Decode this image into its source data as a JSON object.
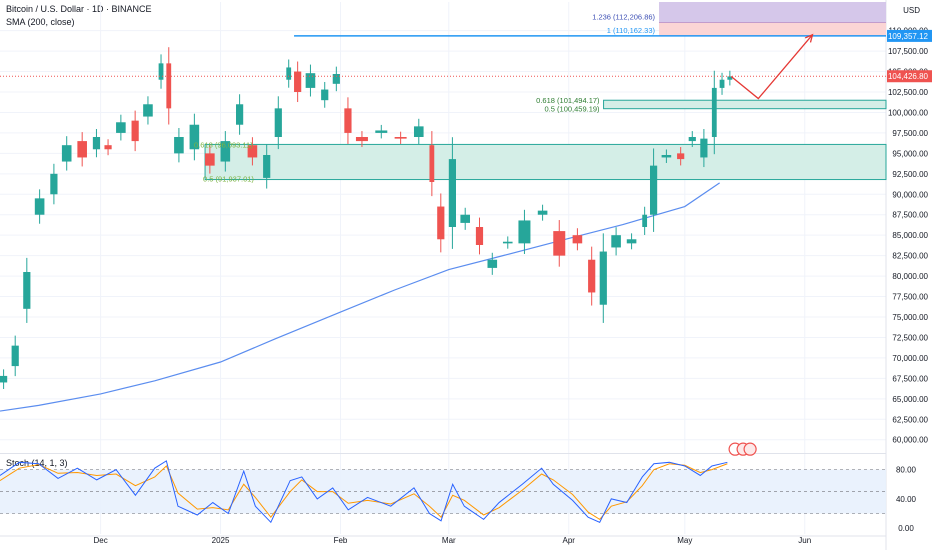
{
  "header": {
    "symbol_title": "Bitcoin / U.S. Dollar · 1D · BINANCE",
    "sma_label": "SMA (200, close)",
    "stoch_label": "Stoch (14, 1, 3)",
    "currency": "USD"
  },
  "colors": {
    "up": "#26a69a",
    "down": "#ef5350",
    "sma": "#5b8def",
    "stoch_k": "#2962ff",
    "stoch_d": "#ff9800",
    "zone_fill": "#d4eee7",
    "zone_border": "#26a69a",
    "breakout_line": "#2196f3",
    "projection_arrow": "#e53935",
    "fib_236_fill": "#d5c7ea",
    "fib_1_fill": "#fbd5d5",
    "current_price_bg": "#ef5350",
    "breakout_price_bg": "#2196f3"
  },
  "chart_data": [
    {
      "type": "candlestick",
      "title": "Bitcoin / U.S. Dollar · 1D · BINANCE",
      "y_axis_ticks": [
        60000,
        62500,
        65000,
        67500,
        70000,
        72500,
        75000,
        77500,
        80000,
        82500,
        85000,
        87500,
        90000,
        92500,
        95000,
        97500,
        100000,
        102500,
        105000,
        107500,
        110000
      ],
      "y_tick_labels": [
        "60,000.00",
        "62,500.00",
        "65,000.00",
        "67,500.00",
        "70,000.00",
        "72,500.00",
        "75,000.00",
        "77,500.00",
        "80,000.00",
        "82,500.00",
        "85,000.00",
        "87,500.00",
        "90,000.00",
        "92,500.00",
        "95,000.00",
        "97,500.00",
        "100,000.00",
        "102,500.00",
        "105,000.00",
        "107,500.00",
        "110,000.00"
      ],
      "ylim": [
        58500,
        113500
      ],
      "x_tick_labels": [
        "Dec",
        "2025",
        "Feb",
        "Mar",
        "Apr",
        "May",
        "Jun"
      ],
      "x_tick_dates": [
        "2024-12-01",
        "2025-01-01",
        "2025-02-01",
        "2025-03-01",
        "2025-04-01",
        "2025-05-01",
        "2025-06-01"
      ],
      "xlim": [
        "2024-11-05",
        "2025-06-22"
      ],
      "series": [
        {
          "name": "SMA (200, close)",
          "points": [
            [
              "2024-11-05",
              63500
            ],
            [
              "2024-11-15",
              64200
            ],
            [
              "2024-12-01",
              65600
            ],
            [
              "2024-12-15",
              67200
            ],
            [
              "2025-01-01",
              69500
            ],
            [
              "2025-01-15",
              72300
            ],
            [
              "2025-02-01",
              75600
            ],
            [
              "2025-02-15",
              78300
            ],
            [
              "2025-03-01",
              80800
            ],
            [
              "2025-03-15",
              82500
            ],
            [
              "2025-04-01",
              84600
            ],
            [
              "2025-04-15",
              86300
            ],
            [
              "2025-05-01",
              88500
            ],
            [
              "2025-05-10",
              91400
            ]
          ]
        }
      ],
      "candles_sampled": [
        [
          "2024-11-05",
          67000,
          67800
        ],
        [
          "2024-11-08",
          69000,
          71500
        ],
        [
          "2024-11-11",
          76000,
          80500
        ],
        [
          "2024-11-14",
          87500,
          89500
        ],
        [
          "2024-11-18",
          90000,
          92500
        ],
        [
          "2024-11-21",
          94000,
          96000
        ],
        [
          "2024-11-25",
          96500,
          94500
        ],
        [
          "2024-11-29",
          95500,
          97000
        ],
        [
          "2024-12-02",
          96000,
          95500
        ],
        [
          "2024-12-05",
          97500,
          98800
        ],
        [
          "2024-12-09",
          99000,
          96500
        ],
        [
          "2024-12-12",
          99500,
          101000
        ],
        [
          "2024-12-16",
          104000,
          106000
        ],
        [
          "2024-12-18",
          106000,
          100500
        ],
        [
          "2024-12-20",
          95000,
          97000
        ],
        [
          "2024-12-24",
          95500,
          98500
        ],
        [
          "2024-12-28",
          95000,
          93500
        ],
        [
          "2025-01-01",
          94000,
          96500
        ],
        [
          "2025-01-05",
          98500,
          101000
        ],
        [
          "2025-01-08",
          96000,
          94500
        ],
        [
          "2025-01-12",
          92000,
          94800
        ],
        [
          "2025-01-15",
          97000,
          100500
        ],
        [
          "2025-01-18",
          104000,
          105500
        ],
        [
          "2025-01-20",
          105000,
          102500
        ],
        [
          "2025-01-23",
          103000,
          104800
        ],
        [
          "2025-01-27",
          101500,
          102800
        ],
        [
          "2025-01-30",
          103500,
          104700
        ],
        [
          "2025-02-02",
          100500,
          97500
        ],
        [
          "2025-02-05",
          97000,
          96500
        ],
        [
          "2025-02-10",
          97500,
          97800
        ],
        [
          "2025-02-15",
          97000,
          96800
        ],
        [
          "2025-02-20",
          97000,
          98300
        ],
        [
          "2025-02-24",
          96000,
          91500
        ],
        [
          "2025-02-26",
          88500,
          84500
        ],
        [
          "2025-03-01",
          86000,
          94300
        ],
        [
          "2025-03-04",
          86500,
          87500
        ],
        [
          "2025-03-08",
          86000,
          83800
        ],
        [
          "2025-03-11",
          81000,
          82000
        ],
        [
          "2025-03-15",
          84000,
          84200
        ],
        [
          "2025-03-19",
          84000,
          86800
        ],
        [
          "2025-03-24",
          87500,
          88000
        ],
        [
          "2025-03-28",
          85500,
          82500
        ],
        [
          "2025-04-02",
          85000,
          84000
        ],
        [
          "2025-04-06",
          82000,
          78000
        ],
        [
          "2025-04-09",
          76500,
          83000
        ],
        [
          "2025-04-12",
          83500,
          85000
        ],
        [
          "2025-04-16",
          84000,
          84500
        ],
        [
          "2025-04-20",
          86000,
          87500
        ],
        [
          "2025-04-22",
          87500,
          93500
        ],
        [
          "2025-04-25",
          94500,
          94800
        ],
        [
          "2025-04-29",
          95000,
          94300
        ],
        [
          "2025-05-02",
          96500,
          97000
        ],
        [
          "2025-05-05",
          94500,
          96800
        ],
        [
          "2025-05-08",
          97000,
          103000
        ],
        [
          "2025-05-10",
          103000,
          104000
        ],
        [
          "2025-05-12",
          104000,
          104400
        ]
      ]
    },
    {
      "type": "line",
      "title": "Stoch (14, 1, 3)",
      "y_axis_ticks": [
        0,
        40,
        80
      ],
      "y_tick_labels": [
        "0.00",
        "40.00",
        "80.00"
      ],
      "reference_levels": [
        20,
        50,
        80
      ],
      "ylim": [
        -8,
        100
      ],
      "series": [
        {
          "name": "%K",
          "points": [
            [
              "2024-11-05",
              72
            ],
            [
              "2024-11-10",
              90
            ],
            [
              "2024-11-15",
              88
            ],
            [
              "2024-11-20",
              68
            ],
            [
              "2024-11-25",
              82
            ],
            [
              "2024-11-30",
              66
            ],
            [
              "2024-12-05",
              80
            ],
            [
              "2024-12-10",
              45
            ],
            [
              "2024-12-15",
              82
            ],
            [
              "2024-12-18",
              92
            ],
            [
              "2024-12-21",
              30
            ],
            [
              "2024-12-26",
              18
            ],
            [
              "2024-12-30",
              35
            ],
            [
              "2025-01-03",
              20
            ],
            [
              "2025-01-07",
              78
            ],
            [
              "2025-01-10",
              30
            ],
            [
              "2025-01-14",
              8
            ],
            [
              "2025-01-19",
              65
            ],
            [
              "2025-01-22",
              70
            ],
            [
              "2025-01-26",
              40
            ],
            [
              "2025-01-30",
              55
            ],
            [
              "2025-02-03",
              25
            ],
            [
              "2025-02-08",
              42
            ],
            [
              "2025-02-14",
              30
            ],
            [
              "2025-02-20",
              55
            ],
            [
              "2025-02-24",
              20
            ],
            [
              "2025-02-27",
              10
            ],
            [
              "2025-03-02",
              60
            ],
            [
              "2025-03-05",
              30
            ],
            [
              "2025-03-10",
              12
            ],
            [
              "2025-03-14",
              35
            ],
            [
              "2025-03-20",
              60
            ],
            [
              "2025-03-25",
              82
            ],
            [
              "2025-03-28",
              60
            ],
            [
              "2025-04-02",
              38
            ],
            [
              "2025-04-06",
              15
            ],
            [
              "2025-04-09",
              8
            ],
            [
              "2025-04-12",
              40
            ],
            [
              "2025-04-16",
              35
            ],
            [
              "2025-04-20",
              70
            ],
            [
              "2025-04-23",
              88
            ],
            [
              "2025-04-27",
              90
            ],
            [
              "2025-05-01",
              85
            ],
            [
              "2025-05-05",
              72
            ],
            [
              "2025-05-08",
              85
            ],
            [
              "2025-05-12",
              90
            ]
          ]
        },
        {
          "name": "%D",
          "points": [
            [
              "2024-11-05",
              65
            ],
            [
              "2024-11-10",
              82
            ],
            [
              "2024-11-15",
              87
            ],
            [
              "2024-11-20",
              75
            ],
            [
              "2024-11-25",
              76
            ],
            [
              "2024-11-30",
              72
            ],
            [
              "2024-12-05",
              74
            ],
            [
              "2024-12-10",
              58
            ],
            [
              "2024-12-15",
              70
            ],
            [
              "2024-12-18",
              85
            ],
            [
              "2024-12-21",
              48
            ],
            [
              "2024-12-26",
              26
            ],
            [
              "2024-12-30",
              28
            ],
            [
              "2025-01-03",
              25
            ],
            [
              "2025-01-07",
              60
            ],
            [
              "2025-01-10",
              42
            ],
            [
              "2025-01-14",
              15
            ],
            [
              "2025-01-19",
              50
            ],
            [
              "2025-01-22",
              66
            ],
            [
              "2025-01-26",
              50
            ],
            [
              "2025-01-30",
              50
            ],
            [
              "2025-02-03",
              34
            ],
            [
              "2025-02-08",
              38
            ],
            [
              "2025-02-14",
              33
            ],
            [
              "2025-02-20",
              47
            ],
            [
              "2025-02-24",
              30
            ],
            [
              "2025-02-27",
              15
            ],
            [
              "2025-03-02",
              45
            ],
            [
              "2025-03-05",
              38
            ],
            [
              "2025-03-10",
              18
            ],
            [
              "2025-03-14",
              28
            ],
            [
              "2025-03-20",
              52
            ],
            [
              "2025-03-25",
              74
            ],
            [
              "2025-03-28",
              66
            ],
            [
              "2025-04-02",
              46
            ],
            [
              "2025-04-06",
              22
            ],
            [
              "2025-04-09",
              12
            ],
            [
              "2025-04-12",
              30
            ],
            [
              "2025-04-16",
              36
            ],
            [
              "2025-04-20",
              58
            ],
            [
              "2025-04-23",
              80
            ],
            [
              "2025-04-27",
              88
            ],
            [
              "2025-05-01",
              86
            ],
            [
              "2025-05-05",
              76
            ],
            [
              "2025-05-08",
              80
            ],
            [
              "2025-05-12",
              88
            ]
          ]
        }
      ]
    }
  ],
  "annotations": {
    "fib_upper": [
      {
        "label": "1.236 (112,206.86)",
        "low": 111000,
        "high": 113500,
        "fill": "#d5c7ea",
        "border": "#7e57c2",
        "text_color": "#3f51b5"
      },
      {
        "label": "1 (110,162.33)",
        "low": 109357,
        "high": 111000,
        "fill": "#fbd5d5",
        "border": "#ef9a9a",
        "text_color": "#2196f3"
      }
    ],
    "breakout_line": {
      "value": 109357.12,
      "start": "2025-01-20",
      "label": "109,357.12"
    },
    "current_price": {
      "value": 104426.8,
      "label": "104,426.80"
    },
    "fib_mid": [
      {
        "label": "0.618 (101,494.17)",
        "value": 101494.17
      },
      {
        "label": "0.5 (100,459.19)",
        "value": 100459.19
      }
    ],
    "mid_zone": {
      "low": 100459.19,
      "high": 101494.17,
      "start": "2025-04-10"
    },
    "support_zone": {
      "low": 91800,
      "high": 96093,
      "start": "2024-12-28"
    },
    "fib_low_labels": [
      {
        "label": "0.618 (96,093.11)",
        "value": 96093.11
      },
      {
        "label": "0.5 (91,937.01)",
        "value": 91937.01
      }
    ],
    "projection": {
      "points": [
        [
          "2025-05-13",
          104400
        ],
        [
          "2025-05-20",
          101700
        ],
        [
          "2025-06-03",
          109500
        ]
      ]
    },
    "event_badges_date": "2025-05-14"
  }
}
